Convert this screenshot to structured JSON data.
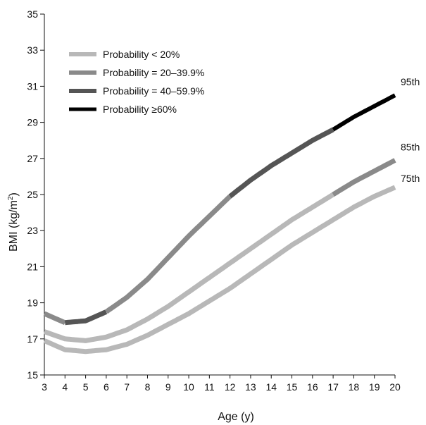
{
  "chart_data": {
    "type": "line",
    "title": "",
    "xlabel": "Age (y)",
    "ylabel_main": "BMI (kg/m",
    "ylabel_sup": "2",
    "ylabel_close": ")",
    "xlim": [
      3,
      20
    ],
    "ylim": [
      15,
      35
    ],
    "x_ticks": [
      3,
      4,
      5,
      6,
      7,
      8,
      9,
      10,
      11,
      12,
      13,
      14,
      15,
      16,
      17,
      18,
      19,
      20
    ],
    "y_ticks": [
      15,
      17,
      19,
      21,
      23,
      25,
      27,
      29,
      31,
      33,
      35
    ],
    "grid": false,
    "legend_position": "top-left",
    "legend": [
      {
        "label": "Probability < 20%",
        "key": "lt20",
        "color": "#b8b8b8"
      },
      {
        "label": "Probability = 20–39.9%",
        "key": "p20",
        "color": "#8a8a8a"
      },
      {
        "label": "Probability = 40–59.9%",
        "key": "p40",
        "color": "#555555"
      },
      {
        "label": "Probability ≥60%",
        "key": "p60",
        "color": "#000000"
      }
    ],
    "x": [
      3,
      4,
      5,
      6,
      7,
      8,
      9,
      10,
      11,
      12,
      13,
      14,
      15,
      16,
      17,
      18,
      19,
      20
    ],
    "series": [
      {
        "name": "95th",
        "values": [
          18.4,
          17.9,
          18.0,
          18.5,
          19.3,
          20.3,
          21.5,
          22.7,
          23.8,
          24.9,
          25.8,
          26.6,
          27.3,
          28.0,
          28.6,
          29.3,
          29.9,
          30.5
        ],
        "bands": [
          [
            "p20",
            3,
            4
          ],
          [
            "p40",
            4,
            6
          ],
          [
            "p20",
            6,
            12
          ],
          [
            "p40",
            12,
            17
          ],
          [
            "p60",
            17,
            20
          ]
        ]
      },
      {
        "name": "85th",
        "values": [
          17.4,
          17.0,
          16.9,
          17.1,
          17.5,
          18.1,
          18.8,
          19.6,
          20.4,
          21.2,
          22.0,
          22.8,
          23.6,
          24.3,
          25.0,
          25.7,
          26.3,
          26.9
        ],
        "bands": [
          [
            "lt20",
            3,
            17
          ],
          [
            "p20",
            17,
            20
          ]
        ]
      },
      {
        "name": "75th",
        "values": [
          16.9,
          16.4,
          16.3,
          16.4,
          16.7,
          17.2,
          17.8,
          18.4,
          19.1,
          19.8,
          20.6,
          21.4,
          22.2,
          22.9,
          23.6,
          24.3,
          24.9,
          25.4
        ],
        "bands": [
          [
            "lt20",
            3,
            20
          ]
        ]
      }
    ]
  }
}
